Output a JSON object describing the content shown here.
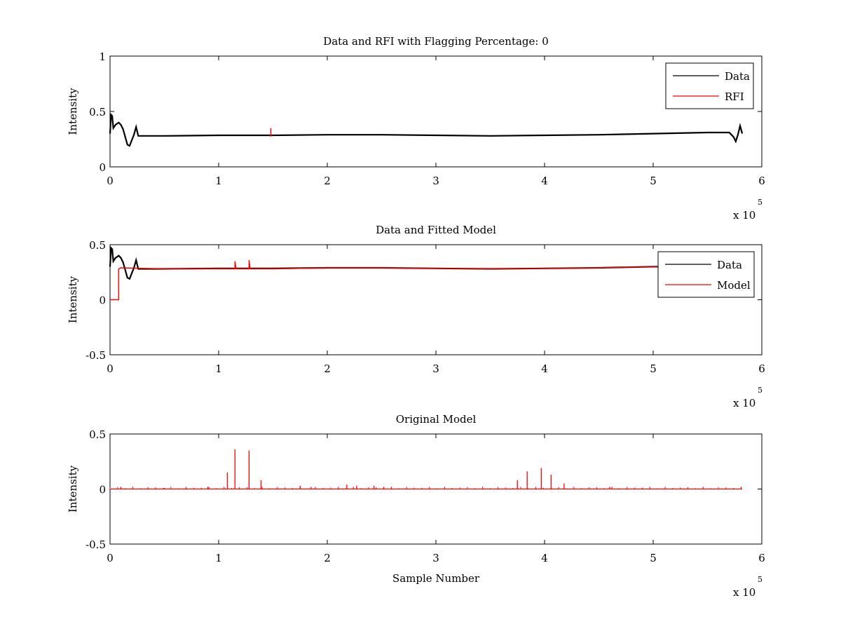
{
  "chart_data": [
    {
      "type": "line",
      "title": "Data and RFI with Flagging Percentage: 0",
      "xlabel": "",
      "ylabel": "Intensity",
      "x_exponent_label": "x 10",
      "x_exponent": "5",
      "xlim": [
        0,
        6
      ],
      "ylim": [
        0,
        1
      ],
      "xticks": [
        "0",
        "1",
        "2",
        "3",
        "4",
        "5",
        "6"
      ],
      "yticks": [
        "0",
        "0.5",
        "1"
      ],
      "grid": false,
      "legend": {
        "position": "top-right",
        "entries": [
          {
            "label": "Data",
            "color": "#000000"
          },
          {
            "label": "RFI",
            "color": "#ff0000"
          }
        ]
      },
      "series": [
        {
          "name": "Data",
          "color": "#000000",
          "x": [
            0,
            0.01,
            0.02,
            0.03,
            0.05,
            0.08,
            0.1,
            0.12,
            0.14,
            0.16,
            0.18,
            0.2,
            0.22,
            0.24,
            0.26,
            0.3,
            0.5,
            1.0,
            1.5,
            2.0,
            2.5,
            3.0,
            3.5,
            4.0,
            4.5,
            5.0,
            5.5,
            5.7,
            5.74,
            5.76,
            5.78,
            5.8,
            5.82
          ],
          "y": [
            0.3,
            0.47,
            0.46,
            0.35,
            0.38,
            0.4,
            0.38,
            0.34,
            0.27,
            0.2,
            0.19,
            0.24,
            0.29,
            0.36,
            0.28,
            0.28,
            0.28,
            0.285,
            0.285,
            0.29,
            0.29,
            0.285,
            0.28,
            0.285,
            0.29,
            0.3,
            0.31,
            0.31,
            0.27,
            0.23,
            0.29,
            0.37,
            0.3
          ]
        },
        {
          "name": "RFI",
          "color": "#ff0000",
          "x": [
            1.48
          ],
          "y": [
            0.35
          ]
        }
      ]
    },
    {
      "type": "line",
      "title": "Data and Fitted Model",
      "xlabel": "",
      "ylabel": "Intensity",
      "x_exponent_label": "x 10",
      "x_exponent": "5",
      "xlim": [
        0,
        6
      ],
      "ylim": [
        -0.5,
        0.5
      ],
      "xticks": [
        "0",
        "1",
        "2",
        "3",
        "4",
        "5",
        "6"
      ],
      "yticks": [
        "-0.5",
        "0",
        "0.5"
      ],
      "grid": false,
      "legend": {
        "position": "top-right",
        "entries": [
          {
            "label": "Data",
            "color": "#000000"
          },
          {
            "label": "Model",
            "color": "#ff0000"
          }
        ]
      },
      "series": [
        {
          "name": "Data",
          "color": "#000000",
          "x": [
            0,
            0.01,
            0.02,
            0.03,
            0.05,
            0.08,
            0.1,
            0.12,
            0.14,
            0.16,
            0.18,
            0.2,
            0.22,
            0.24,
            0.26,
            0.3,
            0.5,
            1.0,
            1.5,
            2.0,
            2.5,
            3.0,
            3.5,
            4.0,
            4.5,
            5.0,
            5.05
          ],
          "y": [
            0.3,
            0.47,
            0.46,
            0.35,
            0.38,
            0.4,
            0.38,
            0.34,
            0.27,
            0.2,
            0.19,
            0.24,
            0.29,
            0.36,
            0.28,
            0.28,
            0.28,
            0.285,
            0.285,
            0.29,
            0.29,
            0.285,
            0.28,
            0.285,
            0.29,
            0.3,
            0.3
          ]
        },
        {
          "name": "Model",
          "color": "#ff0000",
          "x": [
            0,
            0.08,
            0.08,
            0.1,
            0.5,
            1.0,
            1.15,
            1.15,
            1.16,
            1.28,
            1.28,
            1.29,
            1.5,
            2.0,
            2.5,
            3.0,
            3.5,
            4.0,
            4.5,
            5.0,
            5.05
          ],
          "y": [
            0.0,
            0.0,
            0.28,
            0.29,
            0.28,
            0.28,
            0.28,
            0.35,
            0.28,
            0.28,
            0.36,
            0.28,
            0.28,
            0.29,
            0.29,
            0.285,
            0.28,
            0.285,
            0.29,
            0.3,
            0.3
          ]
        }
      ]
    },
    {
      "type": "line",
      "title": "Original Model",
      "xlabel": "Sample Number",
      "ylabel": "Intensity",
      "x_exponent_label": "x 10",
      "x_exponent": "5",
      "xlim": [
        0,
        6
      ],
      "ylim": [
        -0.5,
        0.5
      ],
      "xticks": [
        "0",
        "1",
        "2",
        "3",
        "4",
        "5",
        "6"
      ],
      "yticks": [
        "-0.5",
        "0",
        "0.5"
      ],
      "grid": false,
      "series": [
        {
          "color": "#ff0000",
          "baseline": 0.0,
          "x_range": [
            0,
            5.82
          ],
          "spikes_x": [
            0.1,
            0.5,
            0.9,
            1.08,
            1.15,
            1.28,
            1.39,
            1.75,
            1.85,
            2.18,
            2.27,
            2.43,
            2.52,
            3.75,
            3.84,
            3.97,
            4.06,
            4.18,
            4.6
          ],
          "spikes_y": [
            0.02,
            0.01,
            0.02,
            0.15,
            0.36,
            0.35,
            0.08,
            0.03,
            0.02,
            0.04,
            0.03,
            0.03,
            0.02,
            0.08,
            0.16,
            0.19,
            0.13,
            0.05,
            0.02
          ]
        }
      ]
    }
  ]
}
